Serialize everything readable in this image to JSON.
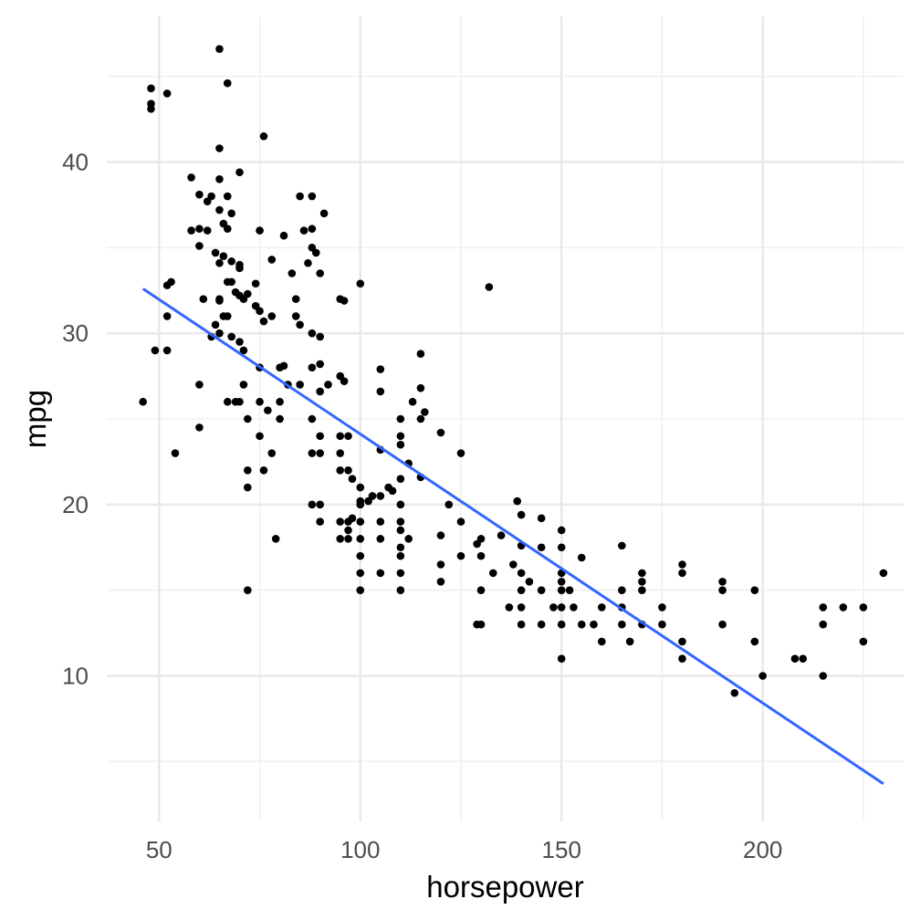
{
  "chart_data": {
    "type": "scatter",
    "title": "",
    "xlabel": "horsepower",
    "ylabel": "mpg",
    "xlim": [
      37,
      235
    ],
    "ylim": [
      1.5,
      48.5
    ],
    "x_ticks": [
      50,
      100,
      150,
      200
    ],
    "y_ticks": [
      10,
      20,
      30,
      40
    ],
    "x_minor_ticks": [
      75,
      125,
      175,
      225
    ],
    "y_minor_ticks": [
      5,
      15,
      25,
      35,
      45
    ],
    "grid": true,
    "legend": "none",
    "point_color": "#000000",
    "fit_line": {
      "method": "linear",
      "color": "#3366FF",
      "x": [
        46,
        230
      ],
      "y": [
        32.6,
        3.7
      ]
    },
    "points": [
      [
        46,
        26
      ],
      [
        48,
        43.4
      ],
      [
        48,
        44.3
      ],
      [
        48,
        43.1
      ],
      [
        49,
        29
      ],
      [
        52,
        44
      ],
      [
        52,
        29
      ],
      [
        52,
        32.8
      ],
      [
        52,
        31
      ],
      [
        53,
        33
      ],
      [
        54,
        23
      ],
      [
        58,
        39.1
      ],
      [
        58,
        36
      ],
      [
        60,
        36.1
      ],
      [
        60,
        38.1
      ],
      [
        60,
        35.1
      ],
      [
        60,
        27
      ],
      [
        60,
        24.5
      ],
      [
        61,
        32
      ],
      [
        62,
        36
      ],
      [
        62,
        37.7
      ],
      [
        63,
        38
      ],
      [
        63,
        29.8
      ],
      [
        64,
        30.5
      ],
      [
        64,
        34.7
      ],
      [
        65,
        46.6
      ],
      [
        65,
        40.8
      ],
      [
        65,
        39
      ],
      [
        65,
        37.2
      ],
      [
        65,
        34.1
      ],
      [
        65,
        32
      ],
      [
        65,
        31.9
      ],
      [
        65,
        30
      ],
      [
        66,
        36.4
      ],
      [
        66,
        31
      ],
      [
        66,
        34.5
      ],
      [
        67,
        44.6
      ],
      [
        67,
        38
      ],
      [
        67,
        36.1
      ],
      [
        67,
        33
      ],
      [
        67,
        31
      ],
      [
        67,
        26
      ],
      [
        68,
        37
      ],
      [
        68,
        34.2
      ],
      [
        68,
        33
      ],
      [
        68,
        29.8
      ],
      [
        69,
        32.4
      ],
      [
        69,
        26
      ],
      [
        70,
        39.4
      ],
      [
        70,
        33.8
      ],
      [
        70,
        34
      ],
      [
        70,
        32.2
      ],
      [
        70,
        29.5
      ],
      [
        70,
        26
      ],
      [
        71,
        32
      ],
      [
        71,
        27
      ],
      [
        71,
        29
      ],
      [
        72,
        32.3
      ],
      [
        72,
        25
      ],
      [
        72,
        22
      ],
      [
        72,
        21
      ],
      [
        72,
        15
      ],
      [
        74,
        31.6
      ],
      [
        74,
        32.9
      ],
      [
        75,
        36
      ],
      [
        75,
        31.3
      ],
      [
        75,
        28
      ],
      [
        75,
        26
      ],
      [
        75,
        24
      ],
      [
        76,
        41.5
      ],
      [
        76,
        30.7
      ],
      [
        76,
        22
      ],
      [
        77,
        25.5
      ],
      [
        78,
        34.3
      ],
      [
        78,
        31
      ],
      [
        78,
        23
      ],
      [
        79,
        18
      ],
      [
        80,
        26
      ],
      [
        80,
        25
      ],
      [
        80,
        28
      ],
      [
        81,
        35.7
      ],
      [
        81,
        28.1
      ],
      [
        82,
        27
      ],
      [
        83,
        33.5
      ],
      [
        84,
        31
      ],
      [
        84,
        32
      ],
      [
        85,
        38
      ],
      [
        85,
        30.5
      ],
      [
        85,
        27
      ],
      [
        86,
        36
      ],
      [
        87,
        34.1
      ],
      [
        88,
        38
      ],
      [
        88,
        36.1
      ],
      [
        88,
        35
      ],
      [
        88,
        30
      ],
      [
        88,
        28
      ],
      [
        88,
        25
      ],
      [
        88,
        23
      ],
      [
        88,
        20
      ],
      [
        89,
        34.7
      ],
      [
        90,
        33.5
      ],
      [
        90,
        29.8
      ],
      [
        90,
        28.2
      ],
      [
        90,
        26.6
      ],
      [
        90,
        24
      ],
      [
        90,
        23
      ],
      [
        90,
        20
      ],
      [
        90,
        19
      ],
      [
        91,
        37
      ],
      [
        92,
        27
      ],
      [
        95,
        32
      ],
      [
        95,
        27.5
      ],
      [
        95,
        24
      ],
      [
        95,
        23
      ],
      [
        95,
        22
      ],
      [
        95,
        19
      ],
      [
        95,
        18
      ],
      [
        96,
        31.9
      ],
      [
        96,
        27.2
      ],
      [
        97,
        24
      ],
      [
        97,
        22
      ],
      [
        97,
        19
      ],
      [
        97,
        18.5
      ],
      [
        97,
        18
      ],
      [
        98,
        21.5
      ],
      [
        98,
        19.2
      ],
      [
        100,
        32.9
      ],
      [
        100,
        21
      ],
      [
        100,
        20.2
      ],
      [
        100,
        20
      ],
      [
        100,
        19
      ],
      [
        100,
        18
      ],
      [
        100,
        17
      ],
      [
        100,
        16
      ],
      [
        100,
        15
      ],
      [
        102,
        20.2
      ],
      [
        103,
        20.5
      ],
      [
        105,
        27.9
      ],
      [
        105,
        26.6
      ],
      [
        105,
        23.2
      ],
      [
        105,
        20.5
      ],
      [
        105,
        19
      ],
      [
        105,
        18
      ],
      [
        105,
        16
      ],
      [
        107,
        21
      ],
      [
        108,
        20.8
      ],
      [
        110,
        25
      ],
      [
        110,
        24
      ],
      [
        110,
        23.5
      ],
      [
        110,
        21.5
      ],
      [
        110,
        20
      ],
      [
        110,
        19
      ],
      [
        110,
        18.5
      ],
      [
        110,
        17.5
      ],
      [
        110,
        17
      ],
      [
        110,
        16
      ],
      [
        110,
        15
      ],
      [
        112,
        22.4
      ],
      [
        112,
        18
      ],
      [
        113,
        26
      ],
      [
        115,
        28.8
      ],
      [
        115,
        26.8
      ],
      [
        115,
        25
      ],
      [
        115,
        21.6
      ],
      [
        116,
        25.4
      ],
      [
        120,
        24.2
      ],
      [
        120,
        18.2
      ],
      [
        120,
        16.5
      ],
      [
        120,
        15.5
      ],
      [
        122,
        20
      ],
      [
        125,
        23
      ],
      [
        125,
        19
      ],
      [
        125,
        17
      ],
      [
        129,
        17.7
      ],
      [
        129,
        13
      ],
      [
        130,
        18
      ],
      [
        130,
        17
      ],
      [
        130,
        15
      ],
      [
        130,
        13
      ],
      [
        132,
        32.7
      ],
      [
        133,
        16
      ],
      [
        135,
        18.2
      ],
      [
        137,
        14
      ],
      [
        138,
        16.5
      ],
      [
        139,
        20.2
      ],
      [
        140,
        19.4
      ],
      [
        140,
        17.6
      ],
      [
        140,
        16
      ],
      [
        140,
        15
      ],
      [
        140,
        14
      ],
      [
        140,
        13
      ],
      [
        142,
        15.5
      ],
      [
        145,
        19.2
      ],
      [
        145,
        17.5
      ],
      [
        145,
        15
      ],
      [
        145,
        13
      ],
      [
        148,
        14
      ],
      [
        150,
        18.5
      ],
      [
        150,
        17.5
      ],
      [
        150,
        16
      ],
      [
        150,
        15.5
      ],
      [
        150,
        15
      ],
      [
        150,
        14
      ],
      [
        150,
        13
      ],
      [
        150,
        11
      ],
      [
        152,
        15
      ],
      [
        153,
        14
      ],
      [
        155,
        16.9
      ],
      [
        155,
        13
      ],
      [
        158,
        13
      ],
      [
        160,
        14
      ],
      [
        160,
        12
      ],
      [
        165,
        17.6
      ],
      [
        165,
        15
      ],
      [
        165,
        14
      ],
      [
        165,
        13
      ],
      [
        167,
        12
      ],
      [
        170,
        16
      ],
      [
        170,
        15.5
      ],
      [
        170,
        15
      ],
      [
        170,
        13
      ],
      [
        175,
        14
      ],
      [
        175,
        13
      ],
      [
        180,
        16.5
      ],
      [
        180,
        16
      ],
      [
        180,
        12
      ],
      [
        180,
        11
      ],
      [
        190,
        15.5
      ],
      [
        190,
        15
      ],
      [
        190,
        13
      ],
      [
        193,
        9
      ],
      [
        198,
        15
      ],
      [
        198,
        12
      ],
      [
        200,
        10
      ],
      [
        208,
        11
      ],
      [
        210,
        11
      ],
      [
        215,
        14
      ],
      [
        215,
        13
      ],
      [
        215,
        10
      ],
      [
        220,
        14
      ],
      [
        225,
        14
      ],
      [
        225,
        12
      ],
      [
        230,
        16
      ]
    ]
  }
}
